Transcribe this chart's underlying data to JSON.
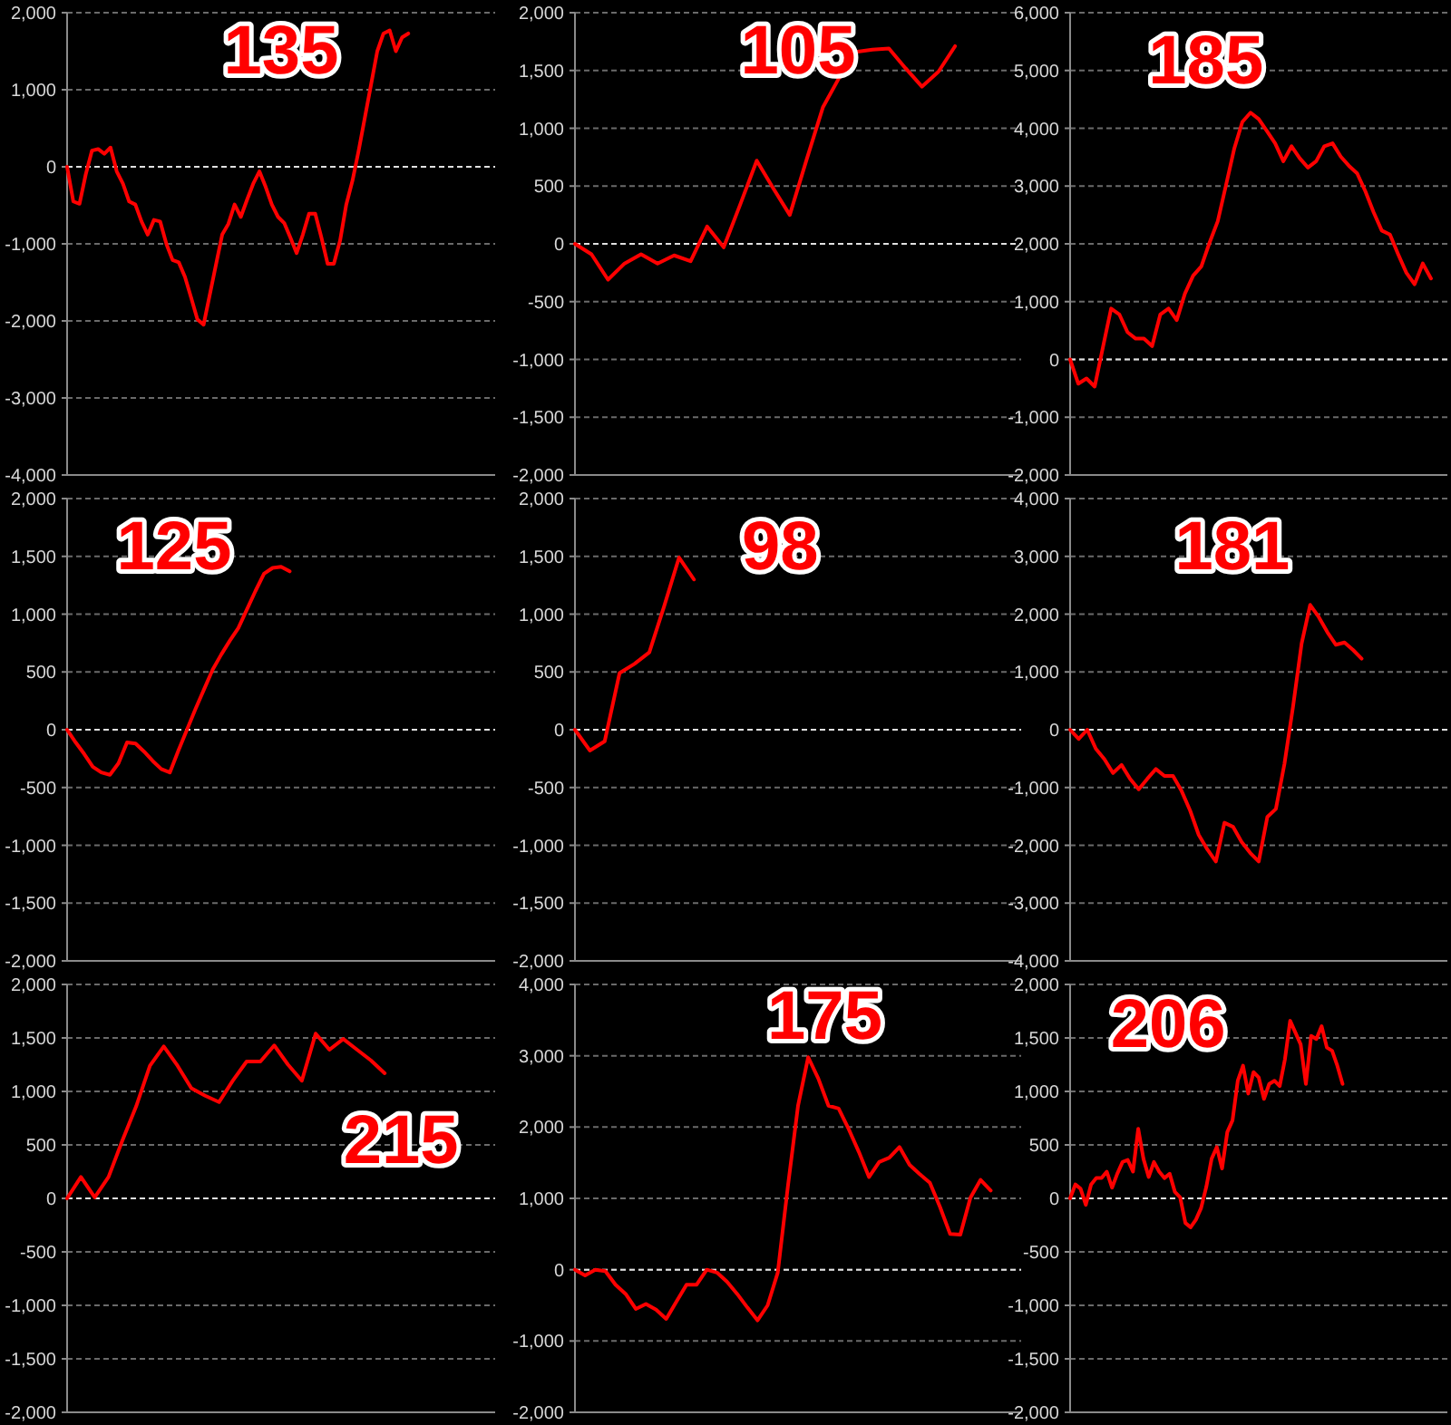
{
  "chart_data": [
    {
      "type": "line",
      "title": "135",
      "categories": [
        null,
        null,
        null,
        null,
        null,
        null,
        null,
        null,
        null,
        null,
        null,
        null,
        null,
        null,
        null,
        null,
        null,
        null,
        null,
        null,
        null,
        null,
        null,
        null,
        null,
        null,
        null,
        null,
        null,
        null,
        null,
        null,
        null,
        null,
        null,
        null,
        null,
        null,
        null,
        null,
        null,
        null,
        null,
        null,
        null,
        null,
        null,
        null,
        null,
        null,
        null,
        null,
        null,
        null,
        null,
        null,
        null,
        null,
        null,
        null,
        null,
        null,
        null,
        null,
        null,
        null,
        null,
        null,
        null,
        null
      ],
      "ylim": [
        -4000,
        2000
      ],
      "yticks": [
        {
          "value": -4000,
          "label": "-4,000"
        },
        {
          "value": -3000,
          "label": "-3,000"
        },
        {
          "value": -2000,
          "label": "-2,000"
        },
        {
          "value": -1000,
          "label": "-1,000"
        },
        0,
        {
          "value": 1000,
          "label": "1,000"
        },
        {
          "value": 2000,
          "label": "2,000"
        }
      ],
      "grid": "y",
      "tick_labels": "y",
      "ref_lines": [
        {
          "axis": "y",
          "value": 0,
          "color": "#e0e0e0",
          "line_style": "dashed"
        }
      ],
      "series": [
        {
          "color": "#ff0000",
          "values": [
            0,
            -450,
            -480,
            -100,
            210,
            230,
            170,
            250,
            -60,
            -220,
            -450,
            -490,
            -710,
            -880,
            -690,
            -710,
            -1000,
            -1210,
            -1240,
            -1430,
            -1700,
            -1980,
            -2050,
            -1660,
            -1270,
            -880,
            -740,
            -490,
            -650,
            -430,
            -220,
            -60,
            -260,
            -490,
            -650,
            -730,
            -920,
            -1120,
            -880,
            -610,
            -610,
            -920,
            -1260,
            -1260,
            -960,
            -490,
            -180,
            210,
            640,
            1070,
            1500,
            1730,
            1770,
            1500,
            1680,
            1730,
            null,
            null,
            null,
            null,
            null,
            null,
            null,
            null,
            null,
            null,
            null,
            null,
            null,
            null
          ]
        }
      ]
    },
    {
      "type": "line",
      "title": "105",
      "categories": [
        null,
        null,
        null,
        null,
        null,
        null,
        null,
        null,
        null,
        null,
        null,
        null,
        null,
        null,
        null,
        null,
        null,
        null,
        null,
        null,
        null,
        null,
        null,
        null,
        null,
        null,
        null,
        null
      ],
      "ylim": [
        -2000,
        2000
      ],
      "yticks": [
        {
          "value": -2000,
          "label": "-2,000"
        },
        {
          "value": -1500,
          "label": "-1,500"
        },
        {
          "value": -1000,
          "label": "-1,000"
        },
        -500,
        0,
        500,
        {
          "value": 1000,
          "label": "1,000"
        },
        {
          "value": 1500,
          "label": "1,500"
        },
        {
          "value": 2000,
          "label": "2,000"
        }
      ],
      "grid": "y",
      "tick_labels": "y",
      "ref_lines": [
        {
          "axis": "y",
          "value": 0,
          "color": "#e0e0e0",
          "line_style": "dashed"
        }
      ],
      "series": [
        {
          "color": "#ff0000",
          "values": [
            0,
            -90,
            -310,
            -170,
            -90,
            -170,
            -100,
            -150,
            150,
            -30,
            340,
            720,
            480,
            250,
            720,
            1180,
            1440,
            1660,
            1680,
            1690,
            1520,
            1360,
            1490,
            1710,
            null,
            null,
            null,
            null
          ]
        }
      ]
    },
    {
      "type": "line",
      "title": "185",
      "categories": [
        null,
        null,
        null,
        null,
        null,
        null,
        null,
        null,
        null,
        null,
        null,
        null,
        null,
        null,
        null,
        null,
        null,
        null,
        null,
        null,
        null,
        null,
        null,
        null,
        null,
        null,
        null,
        null,
        null,
        null,
        null,
        null,
        null,
        null,
        null,
        null,
        null,
        null,
        null,
        null,
        null,
        null,
        null,
        null,
        null,
        null,
        null
      ],
      "ylim": [
        -2000,
        6000
      ],
      "yticks": [
        {
          "value": -2000,
          "label": "-2,000"
        },
        {
          "value": -1000,
          "label": "-1,000"
        },
        0,
        {
          "value": 1000,
          "label": "1,000"
        },
        {
          "value": 2000,
          "label": "2,000"
        },
        {
          "value": 3000,
          "label": "3,000"
        },
        {
          "value": 4000,
          "label": "4,000"
        },
        {
          "value": 5000,
          "label": "5,000"
        },
        {
          "value": 6000,
          "label": "6,000"
        }
      ],
      "grid": "y",
      "tick_labels": "y",
      "ref_lines": [
        {
          "axis": "y",
          "value": 0,
          "color": "#e0e0e0",
          "line_style": "dashed"
        }
      ],
      "series": [
        {
          "color": "#ff0000",
          "values": [
            0,
            -420,
            -330,
            -470,
            210,
            880,
            780,
            470,
            360,
            360,
            230,
            780,
            880,
            680,
            1140,
            1450,
            1610,
            2020,
            2390,
            3010,
            3640,
            4110,
            4270,
            4160,
            3950,
            3740,
            3430,
            3690,
            3480,
            3320,
            3430,
            3690,
            3740,
            3510,
            3350,
            3220,
            2910,
            2550,
            2230,
            2160,
            1820,
            1500,
            1300,
            1660,
            1400,
            null,
            null
          ]
        }
      ]
    },
    {
      "type": "line",
      "title": "125",
      "categories": [
        null,
        null,
        null,
        null,
        null,
        null,
        null,
        null,
        null,
        null,
        null,
        null,
        null,
        null,
        null,
        null,
        null,
        null,
        null,
        null,
        null,
        null,
        null,
        null,
        null,
        null,
        null,
        null,
        null,
        null,
        null,
        null,
        null,
        null,
        null,
        null,
        null,
        null,
        null,
        null,
        null,
        null,
        null,
        null,
        null,
        null,
        null,
        null,
        null,
        null,
        null
      ],
      "ylim": [
        -2000,
        2000
      ],
      "yticks": [
        {
          "value": -2000,
          "label": "-2,000"
        },
        {
          "value": -1500,
          "label": "-1,500"
        },
        {
          "value": -1000,
          "label": "-1,000"
        },
        -500,
        0,
        500,
        {
          "value": 1000,
          "label": "1,000"
        },
        {
          "value": 1500,
          "label": "1,500"
        },
        {
          "value": 2000,
          "label": "2,000"
        }
      ],
      "grid": "y",
      "tick_labels": "y",
      "ref_lines": [
        {
          "axis": "y",
          "value": 0,
          "color": "#e0e0e0",
          "line_style": "dashed"
        }
      ],
      "series": [
        {
          "color": "#ff0000",
          "values": [
            0,
            -110,
            -210,
            -320,
            -370,
            -390,
            -290,
            -110,
            -120,
            -190,
            -270,
            -340,
            -370,
            -180,
            0,
            180,
            350,
            520,
            650,
            770,
            880,
            1040,
            1200,
            1350,
            1400,
            1410,
            1370,
            null,
            null,
            null,
            null,
            null,
            null,
            null,
            null,
            null,
            null,
            null,
            null,
            null,
            null,
            null,
            null,
            null,
            null,
            null,
            null,
            null,
            null,
            null,
            null
          ]
        }
      ]
    },
    {
      "type": "line",
      "title": "98",
      "categories": [
        null,
        null,
        null,
        null,
        null,
        null,
        null,
        null,
        null,
        null,
        null,
        null,
        null,
        null,
        null,
        null,
        null,
        null,
        null,
        null,
        null,
        null,
        null,
        null,
        null,
        null,
        null,
        null,
        null,
        null,
        null
      ],
      "ylim": [
        -2000,
        2000
      ],
      "yticks": [
        {
          "value": -2000,
          "label": "-2,000"
        },
        {
          "value": -1500,
          "label": "-1,500"
        },
        {
          "value": -1000,
          "label": "-1,000"
        },
        -500,
        0,
        500,
        {
          "value": 1000,
          "label": "1,000"
        },
        {
          "value": 1500,
          "label": "1,500"
        },
        {
          "value": 2000,
          "label": "2,000"
        }
      ],
      "grid": "y",
      "tick_labels": "y",
      "ref_lines": [
        {
          "axis": "y",
          "value": 0,
          "color": "#e0e0e0",
          "line_style": "dashed"
        }
      ],
      "series": [
        {
          "color": "#ff0000",
          "values": [
            0,
            -180,
            -100,
            490,
            570,
            670,
            1070,
            1490,
            1300,
            null,
            null,
            null,
            null,
            null,
            null,
            null,
            null,
            null,
            null,
            null,
            null,
            null,
            null,
            null,
            null,
            null,
            null,
            null,
            null,
            null,
            null
          ]
        }
      ]
    },
    {
      "type": "line",
      "title": "181",
      "categories": [
        null,
        null,
        null,
        null,
        null,
        null,
        null,
        null,
        null,
        null,
        null,
        null,
        null,
        null,
        null,
        null,
        null,
        null,
        null,
        null,
        null,
        null,
        null,
        null,
        null,
        null,
        null,
        null,
        null,
        null,
        null,
        null,
        null,
        null,
        null,
        null,
        null,
        null,
        null,
        null,
        null,
        null,
        null,
        null,
        null
      ],
      "ylim": [
        -4000,
        4000
      ],
      "yticks": [
        {
          "value": -4000,
          "label": "-4,000"
        },
        {
          "value": -3000,
          "label": "-3,000"
        },
        {
          "value": -2000,
          "label": "-2,000"
        },
        {
          "value": -1000,
          "label": "-1,000"
        },
        0,
        {
          "value": 1000,
          "label": "1,000"
        },
        {
          "value": 2000,
          "label": "2,000"
        },
        {
          "value": 3000,
          "label": "3,000"
        },
        {
          "value": 4000,
          "label": "4,000"
        }
      ],
      "grid": "y",
      "tick_labels": "y",
      "ref_lines": [
        {
          "axis": "y",
          "value": 0,
          "color": "#e0e0e0",
          "line_style": "dashed"
        }
      ],
      "series": [
        {
          "color": "#ff0000",
          "values": [
            0,
            -160,
            0,
            -330,
            -510,
            -750,
            -610,
            -850,
            -1030,
            -850,
            -680,
            -800,
            -800,
            -1060,
            -1400,
            -1820,
            -2070,
            -2280,
            -1610,
            -1680,
            -1940,
            -2130,
            -2280,
            -1510,
            -1370,
            -590,
            400,
            1490,
            2160,
            1950,
            1690,
            1470,
            1510,
            1380,
            1230,
            null,
            null,
            null,
            null,
            null,
            null,
            null,
            null,
            null,
            null
          ]
        }
      ]
    },
    {
      "type": "line",
      "title": "215",
      "categories": [
        null,
        null,
        null,
        null,
        null,
        null,
        null,
        null,
        null,
        null,
        null,
        null,
        null,
        null,
        null,
        null,
        null,
        null,
        null,
        null,
        null,
        null,
        null,
        null,
        null,
        null,
        null,
        null,
        null,
        null,
        null,
        null
      ],
      "ylim": [
        -2000,
        2000
      ],
      "yticks": [
        {
          "value": -2000,
          "label": "-2,000"
        },
        {
          "value": -1500,
          "label": "-1,500"
        },
        {
          "value": -1000,
          "label": "-1,000"
        },
        -500,
        0,
        500,
        {
          "value": 1000,
          "label": "1,000"
        },
        {
          "value": 1500,
          "label": "1,500"
        },
        {
          "value": 2000,
          "label": "2,000"
        }
      ],
      "grid": "y",
      "tick_labels": "y",
      "ref_lines": [
        {
          "axis": "y",
          "value": 0,
          "color": "#e0e0e0",
          "line_style": "dashed"
        }
      ],
      "series": [
        {
          "color": "#ff0000",
          "values": [
            0,
            200,
            10,
            200,
            540,
            860,
            1240,
            1420,
            1240,
            1030,
            960,
            900,
            1100,
            1280,
            1280,
            1430,
            1250,
            1100,
            1540,
            1390,
            1490,
            1390,
            1290,
            1170,
            null,
            null,
            null,
            null,
            null,
            null,
            null,
            null
          ]
        }
      ]
    },
    {
      "type": "line",
      "title": "175",
      "categories": [
        null,
        null,
        null,
        null,
        null,
        null,
        null,
        null,
        null,
        null,
        null,
        null,
        null,
        null,
        null,
        null,
        null,
        null,
        null,
        null,
        null,
        null,
        null,
        null,
        null,
        null,
        null,
        null,
        null,
        null,
        null,
        null,
        null,
        null,
        null,
        null,
        null,
        null,
        null,
        null,
        null,
        null,
        null,
        null,
        null
      ],
      "ylim": [
        -2000,
        4000
      ],
      "yticks": [
        {
          "value": -2000,
          "label": "-2,000"
        },
        {
          "value": -1000,
          "label": "-1,000"
        },
        0,
        {
          "value": 1000,
          "label": "1,000"
        },
        {
          "value": 2000,
          "label": "2,000"
        },
        {
          "value": 3000,
          "label": "3,000"
        },
        {
          "value": 4000,
          "label": "4,000"
        }
      ],
      "grid": "y",
      "tick_labels": "y",
      "ref_lines": [
        {
          "axis": "y",
          "value": 0,
          "color": "#e0e0e0",
          "line_style": "dashed"
        }
      ],
      "series": [
        {
          "color": "#ff0000",
          "values": [
            0,
            -80,
            0,
            -20,
            -210,
            -340,
            -550,
            -480,
            -560,
            -690,
            -450,
            -210,
            -210,
            0,
            -40,
            -170,
            -340,
            -530,
            -710,
            -500,
            -40,
            1170,
            2300,
            2980,
            2680,
            2300,
            2260,
            1970,
            1650,
            1300,
            1510,
            1570,
            1720,
            1470,
            1340,
            1220,
            880,
            500,
            490,
            1010,
            1260,
            1110,
            null,
            null,
            null
          ]
        }
      ]
    },
    {
      "type": "line",
      "title": "206",
      "categories": [
        null,
        null,
        null,
        null,
        null,
        null,
        null,
        null,
        null,
        null,
        null,
        null,
        null,
        null,
        null,
        null,
        null,
        null,
        null,
        null,
        null,
        null,
        null,
        null,
        null,
        null,
        null,
        null,
        null,
        null,
        null,
        null,
        null,
        null,
        null,
        null,
        null,
        null,
        null,
        null,
        null,
        null,
        null,
        null,
        null,
        null,
        null,
        null,
        null,
        null,
        null,
        null,
        null,
        null,
        null,
        null,
        null,
        null,
        null,
        null,
        null,
        null,
        null,
        null,
        null,
        null,
        null,
        null,
        null,
        null,
        null,
        null,
        null
      ],
      "ylim": [
        -2000,
        2000
      ],
      "yticks": [
        {
          "value": -2000,
          "label": "-2,000"
        },
        {
          "value": -1500,
          "label": "-1,500"
        },
        {
          "value": -1000,
          "label": "-1,000"
        },
        -500,
        0,
        500,
        {
          "value": 1000,
          "label": "1,000"
        },
        {
          "value": 1500,
          "label": "1,500"
        },
        {
          "value": 2000,
          "label": "2,000"
        }
      ],
      "grid": "y",
      "tick_labels": "y",
      "ref_lines": [
        {
          "axis": "y",
          "value": 0,
          "color": "#e0e0e0",
          "line_style": "dashed"
        }
      ],
      "series": [
        {
          "color": "#ff0000",
          "values": [
            0,
            130,
            90,
            -60,
            130,
            190,
            190,
            250,
            100,
            230,
            340,
            360,
            250,
            650,
            370,
            200,
            340,
            250,
            190,
            230,
            60,
            10,
            -230,
            -270,
            -200,
            -90,
            110,
            370,
            480,
            280,
            620,
            730,
            1100,
            1240,
            980,
            1180,
            1130,
            930,
            1070,
            1100,
            1050,
            1300,
            1660,
            1550,
            1440,
            1070,
            1520,
            1490,
            1610,
            1410,
            1380,
            1240,
            1070,
            null,
            null,
            null,
            null,
            null,
            null,
            null,
            null,
            null,
            null,
            null,
            null,
            null,
            null,
            null,
            null,
            null,
            null,
            null,
            null
          ]
        }
      ]
    }
  ]
}
